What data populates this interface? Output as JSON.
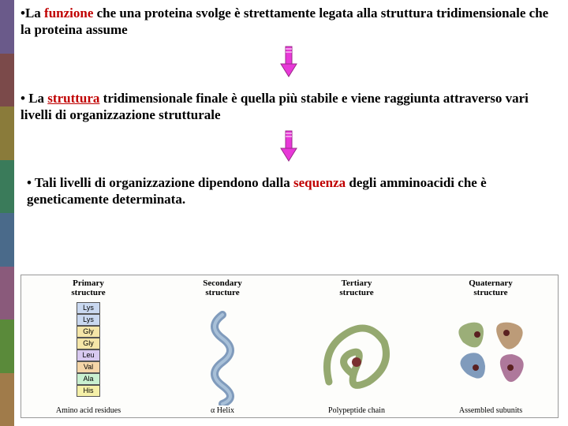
{
  "sidebar_colors": [
    "#6a5a8a",
    "#7b4a4a",
    "#8a7b3a",
    "#3a7b5a",
    "#4a6a8a",
    "#8a5a7b",
    "#5a8a3a",
    "#a07b4a"
  ],
  "bullets": {
    "b1_pre": "La ",
    "b1_hl": "funzione",
    "b1_post": " che una proteina svolge è strettamente legata alla struttura tridimensionale che la proteina assume",
    "b2_pre": "La ",
    "b2_hl": "struttura",
    "b2_post": " tridimensionale finale è quella più stabile e viene raggiunta attraverso vari livelli di organizzazione strutturale",
    "b3_pre": "Tali livelli di organizzazione dipendono dalla ",
    "b3_hl": "sequenza",
    "b3_post": " degli amminoacidi che è geneticamente determinata."
  },
  "arrow": {
    "fill": "#e838d8",
    "stroke": "#9a2a8a"
  },
  "figure": {
    "columns": [
      {
        "title": "Primary\nstructure",
        "caption": "Amino acid residues"
      },
      {
        "title": "Secondary\nstructure",
        "caption": "α Helix"
      },
      {
        "title": "Tertiary\nstructure",
        "caption": "Polypeptide chain"
      },
      {
        "title": "Quaternary\nstructure",
        "caption": "Assembled subunits"
      }
    ],
    "amino_acids": [
      {
        "label": "Lys",
        "bg": "#c9d8f0"
      },
      {
        "label": "Lys",
        "bg": "#c9d8f0"
      },
      {
        "label": "Gly",
        "bg": "#f5e6a8"
      },
      {
        "label": "Gly",
        "bg": "#f5e6a8"
      },
      {
        "label": "Leu",
        "bg": "#d8c9f0"
      },
      {
        "label": "Val",
        "bg": "#f5d6a8"
      },
      {
        "label": "Ala",
        "bg": "#c9f0d0"
      },
      {
        "label": "His",
        "bg": "#f5f0a8"
      }
    ],
    "helix_color": "#6a8ab0",
    "tertiary_color": "#8aa060",
    "quaternary_colors": [
      "#8aa060",
      "#b08a60",
      "#6a8ab0",
      "#a0608a"
    ]
  }
}
